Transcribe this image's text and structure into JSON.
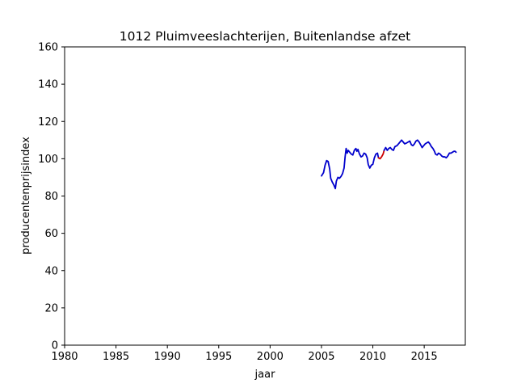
{
  "chart_data": {
    "type": "line",
    "title": "1012 Pluimveeslachterijen, Buitenlandse afzet",
    "xlabel": "jaar",
    "ylabel": "producentenprijsindex",
    "xlim": [
      1980,
      2019
    ],
    "ylim": [
      0,
      160
    ],
    "xticks": [
      1980,
      1985,
      1990,
      1995,
      2000,
      2005,
      2010,
      2015
    ],
    "yticks": [
      0,
      20,
      40,
      60,
      80,
      100,
      120,
      140,
      160
    ],
    "grid": false,
    "legend": "none",
    "series": [
      {
        "color": "#0000cc",
        "points": [
          [
            2005.0,
            90.8
          ],
          [
            2005.2,
            92.5
          ],
          [
            2005.35,
            96.5
          ],
          [
            2005.5,
            99.0
          ],
          [
            2005.65,
            98.5
          ],
          [
            2005.8,
            94.5
          ],
          [
            2005.9,
            89.5
          ],
          [
            2006.05,
            87.5
          ],
          [
            2006.2,
            86.0
          ],
          [
            2006.35,
            84.0
          ],
          [
            2006.45,
            88.0
          ],
          [
            2006.6,
            90.0
          ],
          [
            2006.75,
            89.5
          ],
          [
            2006.9,
            90.5
          ],
          [
            2007.05,
            92.0
          ],
          [
            2007.2,
            95.0
          ],
          [
            2007.3,
            101.0
          ],
          [
            2007.4,
            105.5
          ],
          [
            2007.5,
            103.0
          ],
          [
            2007.6,
            104.5
          ],
          [
            2007.75,
            103.5
          ],
          [
            2007.9,
            102.5
          ],
          [
            2008.05,
            102.0
          ],
          [
            2008.2,
            104.5
          ],
          [
            2008.35,
            105.5
          ],
          [
            2008.45,
            104.0
          ],
          [
            2008.55,
            105.0
          ],
          [
            2008.7,
            102.5
          ],
          [
            2008.85,
            101.0
          ],
          [
            2009.0,
            101.5
          ],
          [
            2009.15,
            103.0
          ],
          [
            2009.3,
            102.5
          ],
          [
            2009.45,
            100.5
          ],
          [
            2009.55,
            97.0
          ],
          [
            2009.7,
            95.0
          ],
          [
            2009.85,
            96.5
          ],
          [
            2010.0,
            97.0
          ],
          [
            2010.15,
            100.5
          ],
          [
            2010.3,
            102.5
          ],
          [
            2010.45,
            103.0
          ],
          [
            2010.55,
            100.5
          ]
        ]
      },
      {
        "color": "#cc0000",
        "points": [
          [
            2010.55,
            100.5
          ],
          [
            2010.7,
            100.0
          ],
          [
            2010.85,
            101.0
          ],
          [
            2011.0,
            102.5
          ],
          [
            2011.1,
            104.5
          ]
        ]
      },
      {
        "color": "#0000cc",
        "points": [
          [
            2011.1,
            104.5
          ],
          [
            2011.25,
            106.0
          ],
          [
            2011.4,
            104.5
          ],
          [
            2011.55,
            105.5
          ],
          [
            2011.7,
            106.0
          ],
          [
            2011.85,
            105.0
          ],
          [
            2012.0,
            104.5
          ],
          [
            2012.15,
            106.5
          ],
          [
            2012.35,
            107.0
          ],
          [
            2012.5,
            108.0
          ],
          [
            2012.65,
            109.0
          ],
          [
            2012.8,
            110.0
          ],
          [
            2012.95,
            109.0
          ],
          [
            2013.1,
            108.0
          ],
          [
            2013.3,
            108.5
          ],
          [
            2013.45,
            109.0
          ],
          [
            2013.6,
            109.5
          ],
          [
            2013.75,
            107.5
          ],
          [
            2013.9,
            107.0
          ],
          [
            2014.05,
            108.0
          ],
          [
            2014.2,
            109.5
          ],
          [
            2014.35,
            110.0
          ],
          [
            2014.5,
            109.0
          ],
          [
            2014.65,
            107.5
          ],
          [
            2014.8,
            106.0
          ],
          [
            2014.95,
            107.0
          ],
          [
            2015.1,
            108.0
          ],
          [
            2015.25,
            108.5
          ],
          [
            2015.4,
            109.0
          ],
          [
            2015.55,
            108.0
          ],
          [
            2015.7,
            106.5
          ],
          [
            2015.85,
            105.5
          ],
          [
            2016.0,
            104.0
          ],
          [
            2016.1,
            102.5
          ],
          [
            2016.25,
            102.0
          ],
          [
            2016.4,
            103.0
          ],
          [
            2016.55,
            102.5
          ],
          [
            2016.7,
            101.5
          ],
          [
            2016.85,
            101.0
          ],
          [
            2017.0,
            101.0
          ],
          [
            2017.15,
            100.5
          ],
          [
            2017.3,
            101.5
          ],
          [
            2017.45,
            103.0
          ],
          [
            2017.6,
            103.0
          ],
          [
            2017.75,
            103.5
          ],
          [
            2017.9,
            104.0
          ],
          [
            2018.0,
            104.0
          ],
          [
            2018.1,
            103.5
          ]
        ]
      }
    ]
  }
}
